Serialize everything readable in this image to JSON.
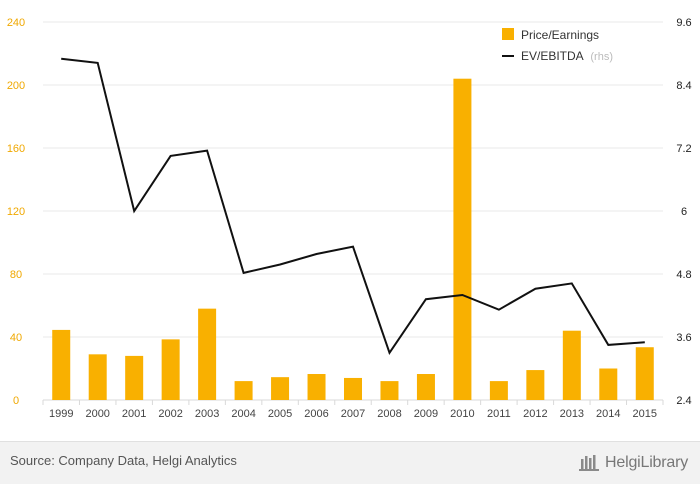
{
  "chart_data": {
    "type": "bar+line",
    "categories": [
      "1999",
      "2000",
      "2001",
      "2002",
      "2003",
      "2004",
      "2005",
      "2006",
      "2007",
      "2008",
      "2009",
      "2010",
      "2011",
      "2012",
      "2013",
      "2014",
      "2015"
    ],
    "series": [
      {
        "name": "Price/Earnings",
        "type": "bar",
        "axis": "left",
        "color": "#f9b000",
        "values": [
          44.5,
          29,
          28,
          38.5,
          58,
          12,
          14.5,
          16.5,
          14,
          12,
          16.5,
          204,
          12,
          19,
          44,
          20,
          33.5
        ]
      },
      {
        "name": "EV/EBITDA",
        "name_note": "(rhs)",
        "type": "line",
        "axis": "right",
        "color": "#111111",
        "values": [
          8.9,
          8.82,
          6.0,
          7.05,
          7.15,
          4.82,
          4.98,
          5.18,
          5.32,
          3.3,
          4.32,
          4.4,
          4.12,
          4.52,
          4.62,
          3.45,
          3.5
        ]
      }
    ],
    "y_left": {
      "ticks": [
        "0",
        "40",
        "80",
        "120",
        "160",
        "200",
        "240"
      ],
      "min": 0,
      "max": 240
    },
    "y_right": {
      "ticks": [
        "2.4",
        "3.6",
        "4.8",
        "6",
        "7.2",
        "8.4",
        "9.6"
      ],
      "min": 2.4,
      "max": 9.6
    },
    "grid": true,
    "legend_position": "top-right"
  },
  "footer": {
    "source": "Source: Company Data, Helgi Analytics",
    "brand": "HelgiLibrary"
  }
}
